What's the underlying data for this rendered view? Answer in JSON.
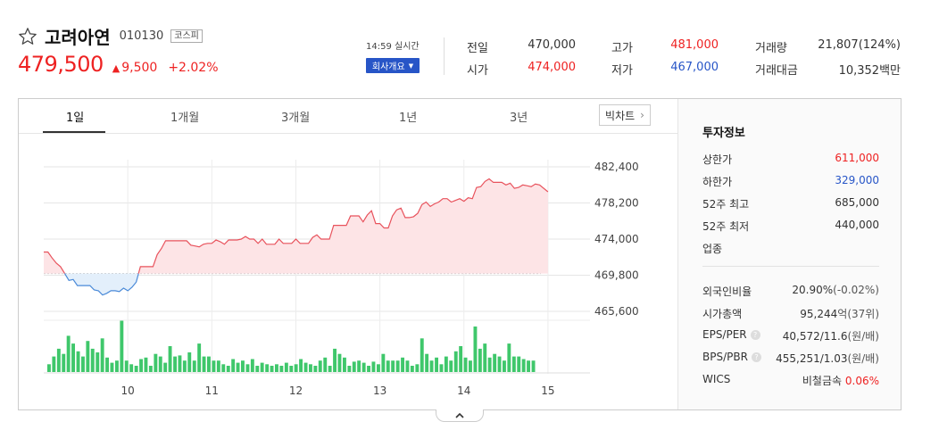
{
  "header": {
    "name": "고려아연",
    "code": "010130",
    "market": "코스피",
    "price": "479,500",
    "change": "9,500",
    "rate": "+2.02%",
    "time": "14:59 실시간",
    "company_button": "회사개요"
  },
  "quotes": [
    {
      "label": "전일",
      "value": "470,000",
      "color": "dark"
    },
    {
      "label": "고가",
      "value": "481,000",
      "color": "red"
    },
    {
      "label": "거래량",
      "value": "21,807(124%)",
      "color": "dark"
    },
    {
      "label": "시가",
      "value": "474,000",
      "color": "red"
    },
    {
      "label": "저가",
      "value": "467,000",
      "color": "blue"
    },
    {
      "label": "거래대금",
      "value": "10,352",
      "unit": "백만",
      "color": "dark"
    }
  ],
  "tabs": [
    "1일",
    "1개월",
    "3개월",
    "1년",
    "3년"
  ],
  "big_chart_label": "빅차트",
  "side": {
    "title": "투자정보",
    "rows1": [
      {
        "label": "상한가",
        "value": "611,000",
        "color": "red"
      },
      {
        "label": "하한가",
        "value": "329,000",
        "color": "blue"
      },
      {
        "label": "52주 최고",
        "value": "685,000",
        "color": "dark"
      },
      {
        "label": "52주 최저",
        "value": "440,000",
        "color": "dark"
      },
      {
        "label": "업종",
        "value": "",
        "color": "dark"
      }
    ],
    "rows2": [
      {
        "label": "외국인비율",
        "value": "20.90%",
        "extra": "(-0.02%)"
      },
      {
        "label": "시가총액",
        "value": "95,244",
        "extra": "억(37위)"
      },
      {
        "label": "EPS/PER",
        "value": "40,572/11.6",
        "extra": "(원/배)",
        "help": true
      },
      {
        "label": "BPS/PBR",
        "value": "455,251/1.03",
        "extra": "(원/배)",
        "help": true
      },
      {
        "label": "WICS",
        "value": "비철금속",
        "extra": "0.06%",
        "extra_color": "red"
      }
    ]
  },
  "chart_data": {
    "type": "line",
    "x_ticks": [
      "10",
      "11",
      "12",
      "13",
      "14",
      "15"
    ],
    "y_ticks": [
      "482,400",
      "478,200",
      "474,000",
      "469,800",
      "465,600"
    ],
    "y_tick_values": [
      482400,
      478200,
      474000,
      469800,
      465600
    ],
    "ylim": [
      465600,
      482400
    ],
    "baseline": 470000,
    "x_range": [
      9.0,
      15.5
    ],
    "price": [
      [
        9.0,
        472500
      ],
      [
        9.05,
        472500
      ],
      [
        9.1,
        471800
      ],
      [
        9.15,
        471200
      ],
      [
        9.2,
        470800
      ],
      [
        9.25,
        470000
      ],
      [
        9.3,
        469200
      ],
      [
        9.35,
        469300
      ],
      [
        9.4,
        468600
      ],
      [
        9.45,
        468600
      ],
      [
        9.55,
        468600
      ],
      [
        9.6,
        468100
      ],
      [
        9.65,
        468000
      ],
      [
        9.7,
        467500
      ],
      [
        9.75,
        467700
      ],
      [
        9.8,
        468000
      ],
      [
        9.85,
        468000
      ],
      [
        9.9,
        467900
      ],
      [
        9.95,
        468300
      ],
      [
        10.0,
        468000
      ],
      [
        10.05,
        468400
      ],
      [
        10.1,
        469000
      ],
      [
        10.15,
        470800
      ],
      [
        10.2,
        470800
      ],
      [
        10.3,
        470800
      ],
      [
        10.35,
        472200
      ],
      [
        10.4,
        472900
      ],
      [
        10.45,
        473800
      ],
      [
        10.5,
        473800
      ],
      [
        10.7,
        473800
      ],
      [
        10.75,
        473300
      ],
      [
        10.8,
        473200
      ],
      [
        10.85,
        473100
      ],
      [
        10.9,
        473400
      ],
      [
        10.95,
        473500
      ],
      [
        11.0,
        473500
      ],
      [
        11.05,
        473900
      ],
      [
        11.1,
        473700
      ],
      [
        11.15,
        473400
      ],
      [
        11.2,
        473900
      ],
      [
        11.3,
        473900
      ],
      [
        11.35,
        474000
      ],
      [
        11.4,
        474300
      ],
      [
        11.45,
        474000
      ],
      [
        11.5,
        474000
      ],
      [
        11.55,
        473500
      ],
      [
        11.6,
        474000
      ],
      [
        11.65,
        473400
      ],
      [
        11.75,
        473400
      ],
      [
        11.8,
        474000
      ],
      [
        11.85,
        473500
      ],
      [
        11.95,
        473500
      ],
      [
        12.0,
        474000
      ],
      [
        12.05,
        473500
      ],
      [
        12.15,
        473500
      ],
      [
        12.2,
        474200
      ],
      [
        12.25,
        474500
      ],
      [
        12.3,
        474000
      ],
      [
        12.4,
        474000
      ],
      [
        12.45,
        475600
      ],
      [
        12.6,
        475600
      ],
      [
        12.65,
        476700
      ],
      [
        12.75,
        476700
      ],
      [
        12.8,
        476000
      ],
      [
        12.85,
        476800
      ],
      [
        12.9,
        477300
      ],
      [
        12.95,
        475800
      ],
      [
        13.0,
        475800
      ],
      [
        13.05,
        475300
      ],
      [
        13.1,
        475300
      ],
      [
        13.15,
        476700
      ],
      [
        13.2,
        477400
      ],
      [
        13.25,
        477600
      ],
      [
        13.3,
        476500
      ],
      [
        13.35,
        476500
      ],
      [
        13.4,
        476600
      ],
      [
        13.45,
        477000
      ],
      [
        13.5,
        478000
      ],
      [
        13.55,
        478300
      ],
      [
        13.6,
        477800
      ],
      [
        13.65,
        478100
      ],
      [
        13.7,
        478300
      ],
      [
        13.75,
        478700
      ],
      [
        13.8,
        478700
      ],
      [
        13.85,
        478300
      ],
      [
        13.9,
        478500
      ],
      [
        13.95,
        478700
      ],
      [
        14.0,
        478400
      ],
      [
        14.05,
        478800
      ],
      [
        14.1,
        478700
      ],
      [
        14.15,
        480000
      ],
      [
        14.2,
        480100
      ],
      [
        14.25,
        480700
      ],
      [
        14.3,
        481000
      ],
      [
        14.35,
        480600
      ],
      [
        14.4,
        480600
      ],
      [
        14.45,
        480600
      ],
      [
        14.5,
        480300
      ],
      [
        14.55,
        480500
      ],
      [
        14.6,
        479900
      ],
      [
        14.65,
        480000
      ],
      [
        14.7,
        480300
      ],
      [
        14.75,
        480200
      ],
      [
        14.8,
        480100
      ],
      [
        14.85,
        480400
      ],
      [
        14.9,
        480300
      ],
      [
        15.0,
        479500
      ]
    ],
    "volume_relative": [
      0.15,
      0.3,
      0.45,
      0.35,
      0.7,
      0.55,
      0.4,
      0.3,
      0.6,
      0.45,
      0.38,
      0.65,
      0.28,
      0.18,
      0.22,
      1.0,
      0.22,
      0.15,
      0.12,
      0.25,
      0.28,
      0.12,
      0.35,
      0.3,
      0.18,
      0.5,
      0.3,
      0.32,
      0.22,
      0.38,
      0.22,
      0.55,
      0.3,
      0.3,
      0.22,
      0.22,
      0.15,
      0.12,
      0.25,
      0.18,
      0.22,
      0.15,
      0.25,
      0.12,
      0.18,
      0.15,
      0.12,
      0.15,
      0.12,
      0.18,
      0.12,
      0.15,
      0.25,
      0.18,
      0.15,
      0.12,
      0.22,
      0.28,
      0.12,
      0.45,
      0.35,
      0.28,
      0.12,
      0.2,
      0.22,
      0.18,
      0.12,
      0.2,
      0.15,
      0.35,
      0.22,
      0.22,
      0.22,
      0.28,
      0.22,
      0.12,
      0.15,
      0.65,
      0.35,
      0.22,
      0.28,
      0.15,
      0.3,
      0.22,
      0.4,
      0.5,
      0.28,
      0.22,
      0.88,
      0.45,
      0.55,
      0.28,
      0.35,
      0.3,
      0.22,
      0.55,
      0.3,
      0.3,
      0.25,
      0.22,
      0.22
    ]
  }
}
